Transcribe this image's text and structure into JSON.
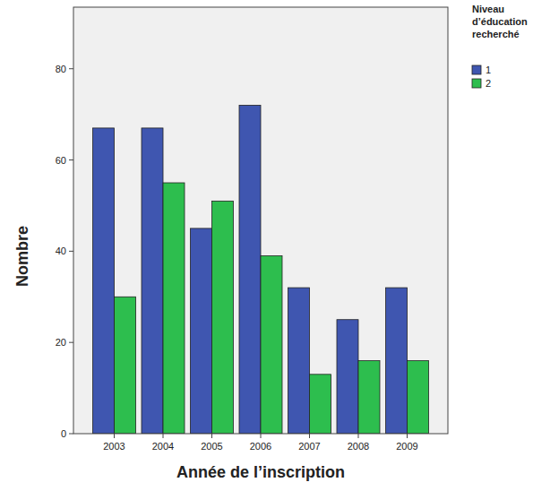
{
  "chart_data": {
    "type": "bar",
    "x_label": "Année de l’inscription",
    "y_label": "Nombre",
    "legend_title": "Niveau d’éducation recherché",
    "legend": "right",
    "categories": [
      "2003",
      "2004",
      "2005",
      "2006",
      "2007",
      "2008",
      "2009"
    ],
    "series": [
      {
        "name": "1",
        "color": "#3f56b0",
        "values": [
          67,
          67,
          45,
          72,
          32,
          25,
          32
        ]
      },
      {
        "name": "2",
        "color": "#2dbe4e",
        "values": [
          30,
          55,
          51,
          39,
          13,
          16,
          16
        ]
      }
    ],
    "ylim": [
      0,
      93.5
    ],
    "yticks": [
      0,
      20,
      40,
      60,
      80
    ],
    "grid": false
  }
}
